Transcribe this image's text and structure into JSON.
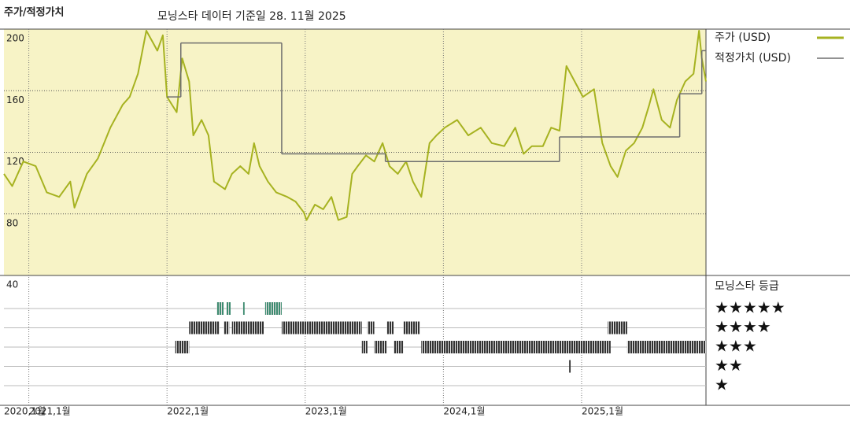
{
  "chart_data": {
    "type": "line",
    "title": "주가/적정가치",
    "subtitle": "모닝스타 데이터 기준일 28. 11월 2025",
    "xlim": [
      2020.82,
      2025.9
    ],
    "xticks": [
      {
        "value": 2020,
        "label": "2020,1월"
      },
      {
        "value": 2021,
        "label": "2021,1월"
      },
      {
        "value": 2022,
        "label": "2022,1월"
      },
      {
        "value": 2023,
        "label": "2023,1월"
      },
      {
        "value": 2024,
        "label": "2024,1월"
      },
      {
        "value": 2025,
        "label": "2025,1월"
      }
    ],
    "ylim": [
      40,
      200
    ],
    "yticks": [
      40,
      80,
      120,
      160,
      200
    ],
    "grid": true,
    "background": "#f7f3c6",
    "series": [
      {
        "name": "주가 (USD)",
        "color": "#a6b220",
        "step": false,
        "x": [
          2020.82,
          2020.88,
          2020.96,
          2021.05,
          2021.13,
          2021.22,
          2021.3,
          2021.33,
          2021.42,
          2021.5,
          2021.59,
          2021.68,
          2021.73,
          2021.79,
          2021.85,
          2021.9,
          2021.93,
          2021.97,
          2022.0,
          2022.07,
          2022.11,
          2022.16,
          2022.19,
          2022.25,
          2022.3,
          2022.34,
          2022.42,
          2022.47,
          2022.53,
          2022.59,
          2022.63,
          2022.67,
          2022.73,
          2022.79,
          2022.87,
          2022.93,
          2022.99,
          2023.01,
          2023.07,
          2023.13,
          2023.19,
          2023.24,
          2023.3,
          2023.34,
          2023.38,
          2023.44,
          2023.5,
          2023.56,
          2023.61,
          2023.67,
          2023.73,
          2023.78,
          2023.84,
          2023.9,
          2023.95,
          2024.01,
          2024.1,
          2024.18,
          2024.27,
          2024.35,
          2024.44,
          2024.52,
          2024.58,
          2024.64,
          2024.72,
          2024.78,
          2024.84,
          2024.89,
          2024.95,
          2025.01,
          2025.09,
          2025.15,
          2025.21,
          2025.26,
          2025.32,
          2025.38,
          2025.44,
          2025.49,
          2025.52,
          2025.58,
          2025.64,
          2025.69,
          2025.75,
          2025.81,
          2025.85,
          2025.87,
          2025.9
        ],
        "values": [
          106,
          98,
          114,
          111,
          94,
          91,
          101,
          84,
          106,
          116,
          136,
          151,
          156,
          171,
          199,
          191,
          186,
          196,
          156,
          146,
          181,
          166,
          131,
          141,
          131,
          101,
          96,
          106,
          111,
          106,
          126,
          111,
          101,
          94,
          91,
          88,
          81,
          76,
          86,
          83,
          91,
          76,
          78,
          106,
          111,
          118,
          114,
          126,
          111,
          106,
          114,
          101,
          91,
          126,
          131,
          136,
          141,
          131,
          136,
          126,
          124,
          136,
          119,
          124,
          124,
          136,
          134,
          176,
          166,
          156,
          161,
          126,
          111,
          104,
          121,
          126,
          136,
          151,
          161,
          141,
          136,
          154,
          166,
          171,
          199,
          181,
          166
        ]
      },
      {
        "name": "적정가치 (USD)",
        "color": "#6e6e6e",
        "step": true,
        "x": [
          2022.0,
          2022.1,
          2022.83,
          2023.58,
          2024.84,
          2025.71,
          2025.87
        ],
        "values": [
          156,
          191,
          119,
          114,
          130,
          158,
          186
        ]
      }
    ],
    "rating_title": "모닝스타 등급",
    "rating_labels": [
      "★",
      "★★",
      "★★★",
      "★★★★",
      "★★★★★"
    ],
    "rating_colors": [
      "#333333",
      "#333333",
      "#333333",
      "#333333",
      "#3d8b70"
    ],
    "ratings": [
      {
        "start": 2022.36,
        "end": 2022.41,
        "stars": 5
      },
      {
        "start": 2022.43,
        "end": 2022.46,
        "stars": 5
      },
      {
        "start": 2022.55,
        "end": 2022.56,
        "stars": 5
      },
      {
        "start": 2022.71,
        "end": 2022.83,
        "stars": 5
      },
      {
        "start": 2022.16,
        "end": 2022.38,
        "stars": 4
      },
      {
        "start": 2022.41,
        "end": 2022.45,
        "stars": 4
      },
      {
        "start": 2022.47,
        "end": 2022.7,
        "stars": 4
      },
      {
        "start": 2022.83,
        "end": 2023.41,
        "stars": 4
      },
      {
        "start": 2023.45,
        "end": 2023.5,
        "stars": 4
      },
      {
        "start": 2023.59,
        "end": 2023.64,
        "stars": 4
      },
      {
        "start": 2023.71,
        "end": 2023.83,
        "stars": 4
      },
      {
        "start": 2025.19,
        "end": 2025.33,
        "stars": 4
      },
      {
        "start": 2022.06,
        "end": 2022.16,
        "stars": 3
      },
      {
        "start": 2023.41,
        "end": 2023.45,
        "stars": 3
      },
      {
        "start": 2023.5,
        "end": 2023.59,
        "stars": 3
      },
      {
        "start": 2023.64,
        "end": 2023.71,
        "stars": 3
      },
      {
        "start": 2023.84,
        "end": 2025.21,
        "stars": 3
      },
      {
        "start": 2025.33,
        "end": 2025.9,
        "stars": 3
      },
      {
        "start": 2024.91,
        "end": 2024.92,
        "stars": 2
      }
    ]
  }
}
